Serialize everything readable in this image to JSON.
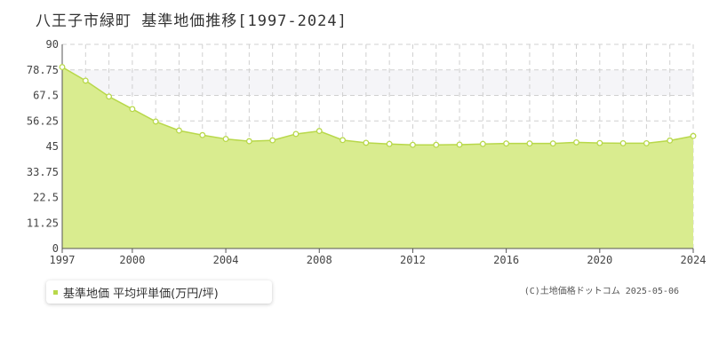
{
  "title": "八王子市緑町 基準地価推移[1997-2024]",
  "legend_label": "基準地価 平均坪単価(万円/坪)",
  "credit": "(C)土地価格ドットコム 2025-05-06",
  "colors": {
    "fill": "#d9ec8f",
    "line": "#b8d84a",
    "band": "#f5f5f8",
    "grid": "#d0d0d0",
    "axis": "#555555"
  },
  "chart_data": {
    "type": "area",
    "title": "八王子市緑町 基準地価推移[1997-2024]",
    "xlabel": "",
    "ylabel": "",
    "xlim": [
      1997,
      2024
    ],
    "ylim": [
      0,
      90
    ],
    "yticks": [
      0,
      11.25,
      22.5,
      33.75,
      45,
      56.25,
      67.5,
      78.75,
      90
    ],
    "ytick_labels": [
      "0",
      "11.25",
      "22.5",
      "33.75",
      "45",
      "56.25",
      "67.5",
      "78.75",
      "90"
    ],
    "xticks": [
      1997,
      2000,
      2004,
      2008,
      2012,
      2016,
      2020,
      2024
    ],
    "xtick_labels": [
      "1997",
      "2000",
      "2004",
      "2008",
      "2012",
      "2016",
      "2020",
      "2024"
    ],
    "grid": true,
    "highlight_band": [
      67.5,
      78.75
    ],
    "series": [
      {
        "name": "基準地価 平均坪単価(万円/坪)",
        "x": [
          1997,
          1998,
          1999,
          2000,
          2001,
          2002,
          2003,
          2004,
          2005,
          2006,
          2007,
          2008,
          2009,
          2010,
          2011,
          2012,
          2013,
          2014,
          2015,
          2016,
          2017,
          2018,
          2019,
          2020,
          2021,
          2022,
          2023,
          2024
        ],
        "values": [
          80.0,
          74.0,
          67.0,
          61.5,
          56.0,
          52.0,
          50.0,
          48.3,
          47.3,
          47.7,
          50.5,
          51.8,
          47.8,
          46.6,
          46.1,
          45.7,
          45.7,
          45.8,
          46.1,
          46.3,
          46.3,
          46.3,
          46.8,
          46.5,
          46.4,
          46.4,
          47.6,
          49.6
        ]
      }
    ]
  }
}
